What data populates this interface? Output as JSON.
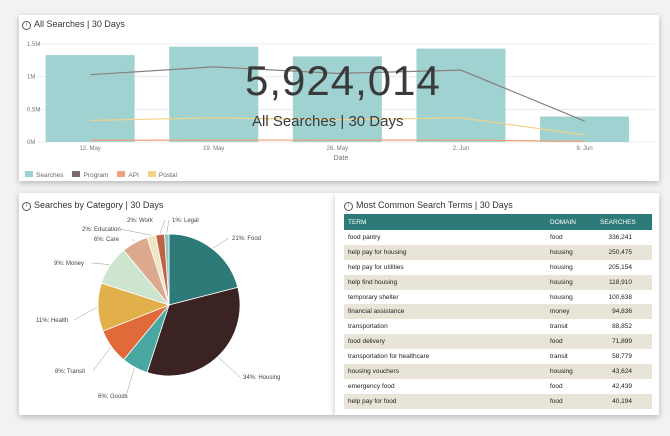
{
  "top": {
    "title": "All Searches | 30 Days",
    "kpi_value": "5,924,014",
    "kpi_label": "All Searches | 30 Days"
  },
  "legend": [
    {
      "label": "Searches",
      "color": "#9fd2d0"
    },
    {
      "label": "Program",
      "color": "#7c6c6c"
    },
    {
      "label": "API",
      "color": "#f0a07a"
    },
    {
      "label": "Postal",
      "color": "#f3d28a"
    }
  ],
  "chart_data": [
    {
      "type": "bar",
      "title": "All Searches | 30 Days",
      "xlabel": "Date",
      "ylabel": "",
      "categories": [
        "12. May",
        "19. May",
        "26. May",
        "2. Jun",
        "9. Jun"
      ],
      "y_ticks": [
        "0M",
        "0.5M",
        "1M",
        "1.5M"
      ],
      "ylim": [
        0,
        1500000
      ],
      "series": [
        {
          "name": "Searches",
          "kind": "bar",
          "color": "#9fd2d0",
          "values": [
            1330000,
            1460000,
            1310000,
            1430000,
            390000
          ]
        },
        {
          "name": "Program",
          "kind": "line",
          "color": "#8a8080",
          "values": [
            1030000,
            1150000,
            1050000,
            1100000,
            320000
          ]
        },
        {
          "name": "API",
          "kind": "line",
          "color": "#f0a07a",
          "values": [
            25000,
            30000,
            28000,
            30000,
            10000
          ]
        },
        {
          "name": "Postal",
          "kind": "line",
          "color": "#f3d28a",
          "values": [
            330000,
            370000,
            340000,
            370000,
            110000
          ]
        }
      ],
      "legend_position": "bottom-left",
      "grid": true
    },
    {
      "type": "pie",
      "title": "Searches by Category | 30 Days",
      "slices": [
        {
          "label": "21%: Food",
          "value": 21,
          "color": "#2e7a78"
        },
        {
          "label": "34%: Housing",
          "value": 34,
          "color": "#3a2322"
        },
        {
          "label": "6%: Goods",
          "value": 6,
          "color": "#48a7a0"
        },
        {
          "label": "8%: Transit",
          "value": 8,
          "color": "#e06a3a"
        },
        {
          "label": "11%: Health",
          "value": 11,
          "color": "#e2b04a"
        },
        {
          "label": "9%: Money",
          "value": 9,
          "color": "#cde5cf"
        },
        {
          "label": "6%: Care",
          "value": 6,
          "color": "#dca98e"
        },
        {
          "label": "2%: Education",
          "value": 2,
          "color": "#f1e6c4"
        },
        {
          "label": "2%: Work",
          "value": 2,
          "color": "#c06448"
        },
        {
          "label": "1%: Legal",
          "value": 1,
          "color": "#8cc7c2"
        }
      ]
    }
  ],
  "table": {
    "title": "Most Common Search Terms | 30 Days",
    "headers": [
      "TERM",
      "DOMAIN",
      "SEARCHES"
    ],
    "rows": [
      [
        "food pantry",
        "food",
        "336,241"
      ],
      [
        "help pay for housing",
        "housing",
        "250,475"
      ],
      [
        "help pay for utilities",
        "housing",
        "205,154"
      ],
      [
        "help find housing",
        "housing",
        "118,910"
      ],
      [
        "temporary shelter",
        "housing",
        "100,638"
      ],
      [
        "financial assistance",
        "money",
        "94,836"
      ],
      [
        "transportation",
        "transit",
        "88,852"
      ],
      [
        "food delivery",
        "food",
        "71,899"
      ],
      [
        "transportation for healthcare",
        "transit",
        "58,779"
      ],
      [
        "housing vouchers",
        "housing",
        "43,624"
      ],
      [
        "emergency food",
        "food",
        "42,439"
      ],
      [
        "help pay for food",
        "food",
        "40,194"
      ]
    ]
  },
  "colors": {
    "accent": "#2e7a78",
    "row_stripe": "#e8e4d8"
  }
}
